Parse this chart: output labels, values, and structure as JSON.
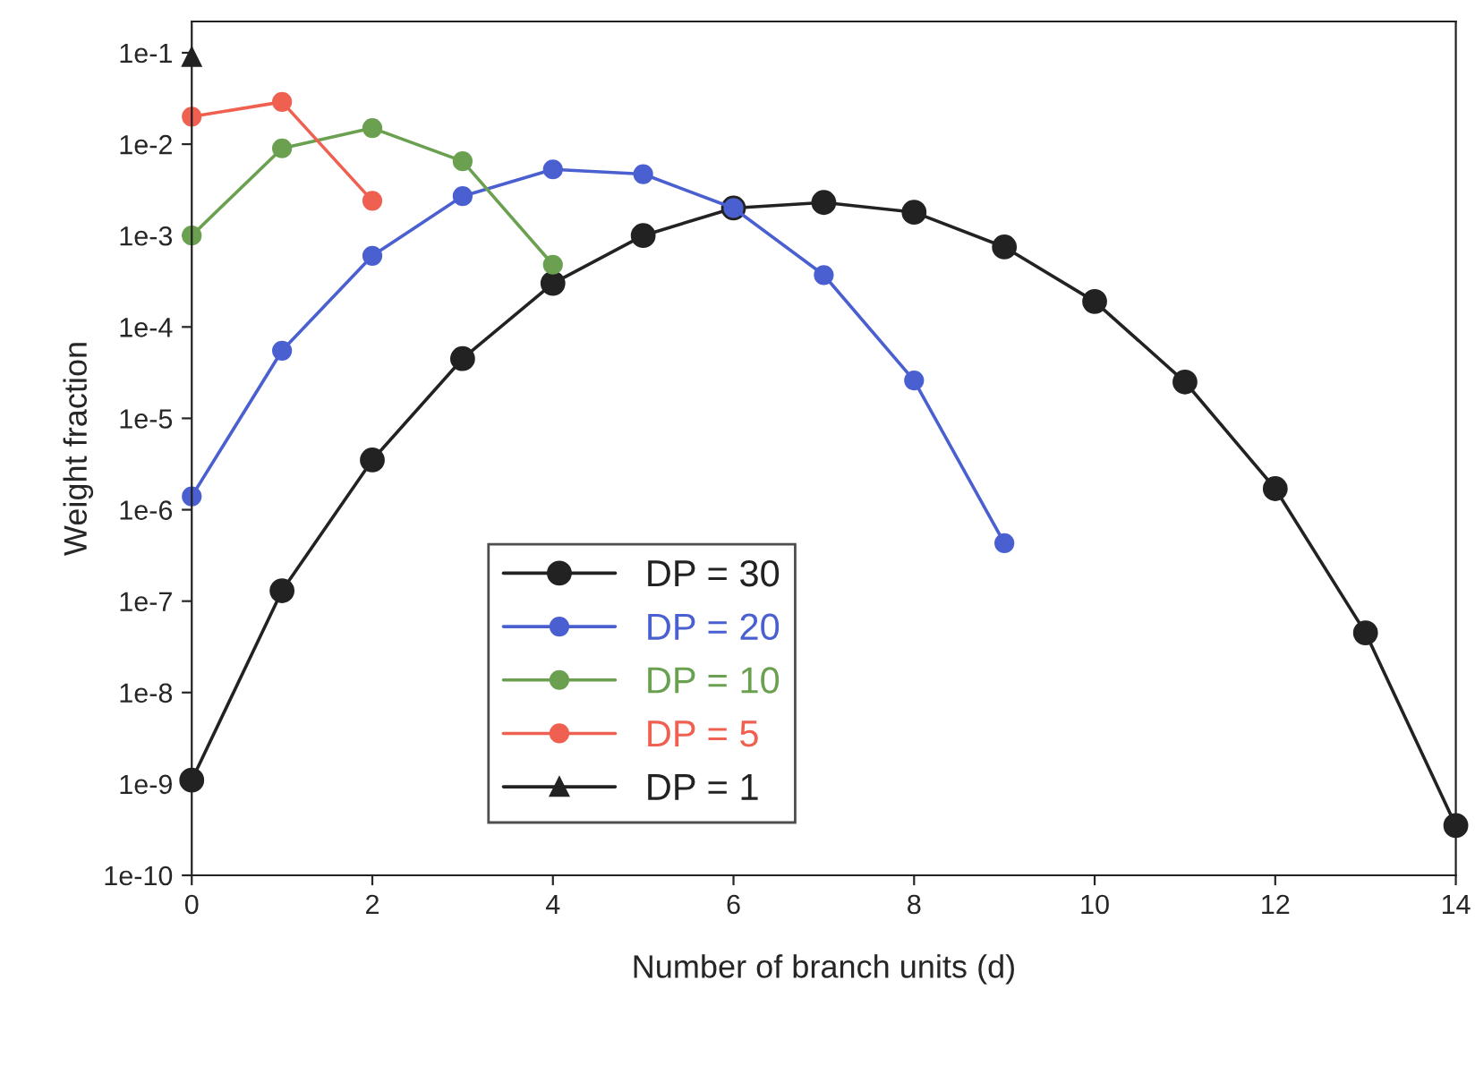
{
  "chart_data": {
    "type": "line",
    "xlabel": "Number of branch units (d)",
    "ylabel": "Weight fraction",
    "log": "y",
    "xlim": [
      0,
      14
    ],
    "xticks": [
      0,
      2,
      4,
      6,
      8,
      10,
      12,
      14
    ],
    "ylim": [
      1e-10,
      0.22
    ],
    "yticks": [
      {
        "value": 1e-10,
        "label": "1e-10"
      },
      {
        "value": 1e-09,
        "label": "1e-9"
      },
      {
        "value": 1e-08,
        "label": "1e-8"
      },
      {
        "value": 1e-07,
        "label": "1e-7"
      },
      {
        "value": 1e-06,
        "label": "1e-6"
      },
      {
        "value": 1e-05,
        "label": "1e-5"
      },
      {
        "value": 0.0001,
        "label": "1e-4"
      },
      {
        "value": 0.001,
        "label": "1e-3"
      },
      {
        "value": 0.01,
        "label": "1e-2"
      },
      {
        "value": 0.1,
        "label": "1e-1"
      }
    ],
    "grid": false,
    "legend": "bottom left",
    "series": [
      {
        "name": "DP = 30",
        "color": "#222222",
        "marker": "circle",
        "x": [
          0,
          1,
          2,
          3,
          4,
          5,
          6,
          7,
          8,
          9,
          10,
          11,
          12,
          13,
          14
        ],
        "values": [
          1.1e-09,
          1.3e-07,
          3.5e-06,
          4.5e-05,
          0.0003,
          0.001,
          0.002,
          0.0023,
          0.0018,
          0.00075,
          0.00019,
          2.5e-05,
          1.7e-06,
          4.5e-08,
          3.5e-10
        ]
      },
      {
        "name": "DP = 20",
        "color": "#4a5fd0",
        "marker": "circle",
        "x": [
          0,
          1,
          2,
          3,
          4,
          5,
          6,
          7,
          8,
          9
        ],
        "values": [
          1.4e-06,
          5.5e-05,
          0.0006,
          0.0027,
          0.0053,
          0.0047,
          0.002,
          0.00037,
          2.6e-05,
          4.3e-07
        ]
      },
      {
        "name": "DP = 10",
        "color": "#6aa050",
        "marker": "circle",
        "x": [
          0,
          1,
          2,
          3,
          4
        ],
        "values": [
          0.001,
          0.009,
          0.015,
          0.0065,
          0.00048
        ]
      },
      {
        "name": "DP = 5",
        "color": "#f06050",
        "marker": "circle",
        "x": [
          0,
          1,
          2
        ],
        "values": [
          0.02,
          0.029,
          0.0024
        ]
      },
      {
        "name": "DP = 1",
        "color": "#222222",
        "marker": "triangle",
        "x": [
          0
        ],
        "values": [
          0.09
        ]
      }
    ]
  }
}
